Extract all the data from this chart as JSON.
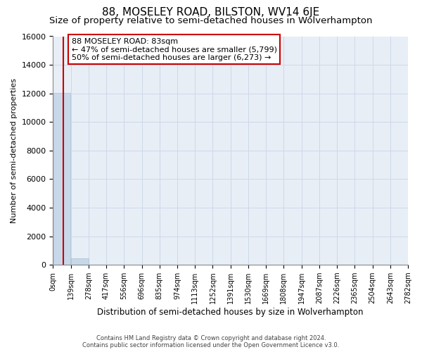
{
  "title": "88, MOSELEY ROAD, BILSTON, WV14 6JE",
  "subtitle": "Size of property relative to semi-detached houses in Wolverhampton",
  "xlabel": "Distribution of semi-detached houses by size in Wolverhampton",
  "ylabel": "Number of semi-detached properties",
  "bar_edges": [
    0,
    139,
    278,
    417,
    556,
    696,
    835,
    974,
    1113,
    1252,
    1391,
    1530,
    1669,
    1808,
    1947,
    2087,
    2226,
    2365,
    2504,
    2643,
    2782
  ],
  "bar_heights": [
    12050,
    450,
    0,
    0,
    0,
    0,
    0,
    0,
    0,
    0,
    0,
    0,
    0,
    0,
    0,
    0,
    0,
    0,
    0,
    0
  ],
  "bar_color": "#c8d8eb",
  "bar_edgecolor": "#aabfcf",
  "property_size": 83,
  "property_line_color": "#cc0000",
  "annotation_title": "88 MOSELEY ROAD: 83sqm",
  "annotation_line1": "← 47% of semi-detached houses are smaller (5,799)",
  "annotation_line2": "50% of semi-detached houses are larger (6,273) →",
  "annotation_box_edgecolor": "#cc0000",
  "annotation_box_facecolor": "#ffffff",
  "ylim": [
    0,
    16000
  ],
  "yticks": [
    0,
    2000,
    4000,
    6000,
    8000,
    10000,
    12000,
    14000,
    16000
  ],
  "xtick_labels": [
    "0sqm",
    "139sqm",
    "278sqm",
    "417sqm",
    "556sqm",
    "696sqm",
    "835sqm",
    "974sqm",
    "1113sqm",
    "1252sqm",
    "1391sqm",
    "1530sqm",
    "1669sqm",
    "1808sqm",
    "1947sqm",
    "2087sqm",
    "2226sqm",
    "2365sqm",
    "2504sqm",
    "2643sqm",
    "2782sqm"
  ],
  "footer_line1": "Contains HM Land Registry data © Crown copyright and database right 2024.",
  "footer_line2": "Contains public sector information licensed under the Open Government Licence v3.0.",
  "background_color": "#ffffff",
  "grid_color": "#ced8e8",
  "title_fontsize": 11,
  "subtitle_fontsize": 9.5,
  "axis_bg_color": "#e8eef6"
}
